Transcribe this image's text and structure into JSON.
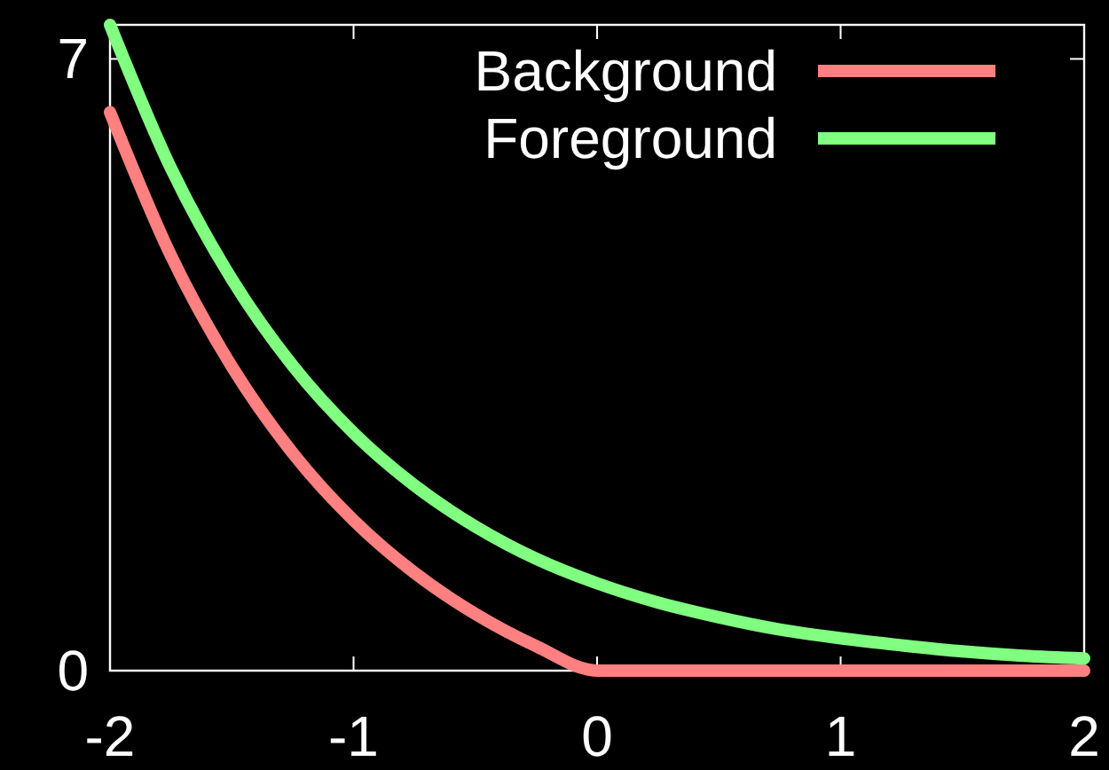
{
  "chart_data": {
    "type": "line",
    "x": [
      -2,
      -1.75,
      -1.5,
      -1.25,
      -1,
      -0.75,
      -0.5,
      -0.25,
      0,
      0.25,
      0.5,
      0.75,
      1,
      1.25,
      1.5,
      1.75,
      2
    ],
    "series": [
      {
        "name": "Background",
        "color": "#ff8080",
        "values": [
          6.39,
          4.75,
          3.48,
          2.49,
          1.72,
          1.12,
          0.65,
          0.28,
          0,
          0,
          0,
          0,
          0,
          0,
          0,
          0,
          0
        ]
      },
      {
        "name": "Foreground",
        "color": "#80ff80",
        "values": [
          7.39,
          5.75,
          4.48,
          3.49,
          2.72,
          2.12,
          1.65,
          1.28,
          1,
          0.78,
          0.61,
          0.47,
          0.37,
          0.29,
          0.22,
          0.17,
          0.14
        ]
      }
    ],
    "xlim": [
      -2,
      2
    ],
    "ylim": [
      0,
      7.39
    ],
    "xticks": [
      -2,
      -1,
      0,
      1,
      2
    ],
    "yticks": [
      0,
      7
    ],
    "grid": false,
    "legend": "top right",
    "marker": "none",
    "line_style": "solid"
  }
}
